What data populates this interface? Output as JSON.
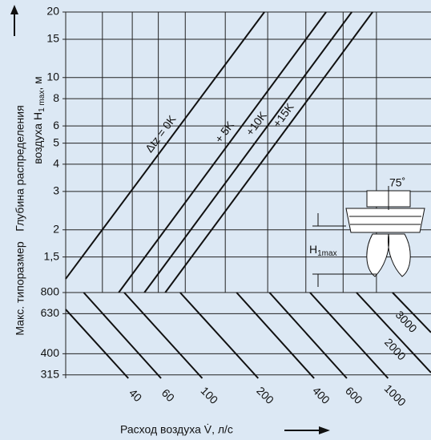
{
  "chart_data": [
    {
      "type": "line",
      "ylog": true,
      "xlog": true,
      "xlim": [
        18.4,
        1703
      ],
      "ylim": [
        1.03,
        20
      ],
      "yticks": [
        20,
        15,
        10,
        8,
        6,
        5,
        4,
        3,
        2,
        {
          "value": 1.5,
          "label": "1,5"
        }
      ],
      "xgrid": [
        29,
        42,
        58,
        81,
        133,
        225,
        361,
        573,
        866
      ],
      "series": [
        {
          "name": "Δtz =  0K",
          "color": "#111",
          "x": [
            18.4,
            216
          ],
          "values": [
            1.19,
            20
          ]
        },
        {
          "name": "+ 5K",
          "color": "#111",
          "x": [
            35.5,
            464
          ],
          "values": [
            1.03,
            20
          ]
        },
        {
          "name": "+10K",
          "color": "#111",
          "x": [
            48.8,
            638
          ],
          "values": [
            1.03,
            20
          ]
        },
        {
          "name": "+15K",
          "color": "#111",
          "x": [
            63.2,
            826
          ],
          "values": [
            1.03,
            20
          ]
        }
      ]
    },
    {
      "type": "line",
      "ylog": true,
      "xlog": true,
      "xlim": [
        18.4,
        1703
      ],
      "ylim": [
        303,
        800
      ],
      "yticks": [
        800,
        630,
        400,
        315
      ],
      "xticks": [
        40,
        60,
        100,
        200,
        400,
        600,
        1000
      ],
      "xlabel": "Расход воздуха V̇, л/с",
      "series": [
        {
          "color": "#111",
          "x": [
            18.4,
            40
          ],
          "values": [
            661,
            303
          ]
        },
        {
          "color": "#111",
          "x": [
            23,
            60
          ],
          "values": [
            800,
            303
          ]
        },
        {
          "color": "#111",
          "x": [
            38,
            100
          ],
          "values": [
            800,
            303
          ]
        },
        {
          "color": "#111",
          "x": [
            76,
            200
          ],
          "values": [
            800,
            303
          ]
        },
        {
          "color": "#111",
          "x": [
            153,
            400
          ],
          "values": [
            800,
            303
          ]
        },
        {
          "color": "#111",
          "x": [
            230,
            600
          ],
          "values": [
            800,
            303
          ]
        },
        {
          "color": "#111",
          "x": [
            380,
            1000
          ],
          "values": [
            800,
            303
          ]
        },
        {
          "name": "2000",
          "color": "#111",
          "x": [
            676,
            1703
          ],
          "values": [
            800,
            323
          ]
        },
        {
          "name": "3000",
          "color": "#111",
          "x": [
            1057,
            1703
          ],
          "values": [
            800,
            509
          ]
        }
      ]
    }
  ],
  "ylabel": {
    "lower": "Макс. типоразмер",
    "upper1": "Глубина распределения",
    "upper2": "воздуха H",
    "sub": "1 max",
    "unit": ", м"
  },
  "inset": {
    "angle": "75˚",
    "h": "H",
    "hsub": "1max"
  }
}
